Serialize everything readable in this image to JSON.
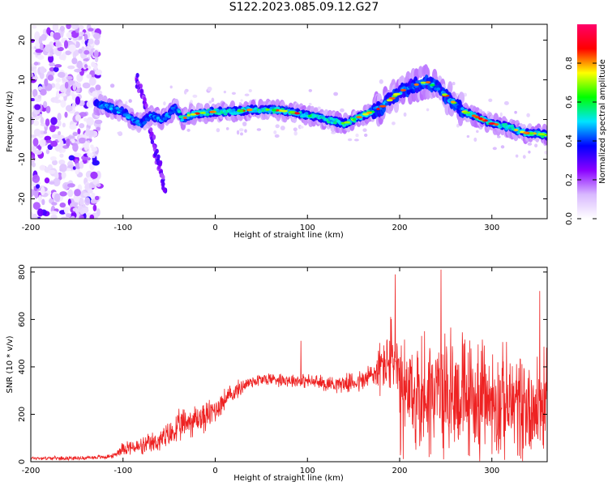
{
  "title": "S122.2023.085.09.12.G27",
  "chart_data": [
    {
      "type": "heatmap",
      "xlabel": "Height of straight line (km)",
      "ylabel": "Frequency (Hz)",
      "xlim": [
        -200,
        360
      ],
      "ylim": [
        -25,
        24
      ],
      "xticks": [
        "-200",
        "-100",
        "0",
        "100",
        "200",
        "300"
      ],
      "yticks": [
        "20",
        "10",
        "0",
        "-10",
        "-20"
      ],
      "colorbar": {
        "label": "Normalized spectral amplitude",
        "range": [
          0.0,
          1.0
        ],
        "ticks": [
          "0.0",
          "0.2",
          "0.4",
          "0.6",
          "0.8"
        ],
        "colors": [
          "#ffffff",
          "#d8b8ff",
          "#8a00ff",
          "#0000ff",
          "#00e5ff",
          "#00ff00",
          "#ffff00",
          "#ff0000",
          "#ff006a"
        ]
      },
      "ridge": {
        "x": [
          -130,
          -115,
          -100,
          -90,
          -80,
          -70,
          -60,
          -50,
          -45,
          -40,
          -35,
          -30,
          -20,
          0,
          20,
          40,
          60,
          80,
          100,
          120,
          140,
          150,
          160,
          170,
          180,
          190,
          200,
          210,
          220,
          230,
          240,
          250,
          260,
          270,
          280,
          290,
          300,
          310,
          320,
          330,
          340,
          350,
          360
        ],
        "y": [
          4,
          3,
          2,
          0,
          -1,
          1,
          0,
          1,
          3,
          2,
          0,
          1,
          1.5,
          2,
          2,
          2.5,
          2.5,
          2,
          1,
          0,
          -1,
          0,
          1,
          2,
          3,
          5,
          7,
          8,
          9,
          9.5,
          8,
          6,
          4,
          2,
          1,
          0,
          -1,
          -1.5,
          -2,
          -3,
          -3.5,
          -3.5,
          -4
        ]
      },
      "noise_region_x": [
        -200,
        -125
      ],
      "side_branches": [
        {
          "x": [
            -85,
            -80,
            -75,
            -70
          ],
          "y": [
            10,
            7,
            3,
            0
          ]
        },
        {
          "x": [
            -70,
            -65,
            -60,
            -55
          ],
          "y": [
            -2,
            -8,
            -12,
            -18
          ]
        }
      ]
    },
    {
      "type": "line",
      "xlabel": "Height of straight line (km)",
      "ylabel": "SNR (10 * v/v)",
      "xlim": [
        -200,
        360
      ],
      "ylim": [
        0,
        820
      ],
      "xticks": [
        "-200",
        "-100",
        "0",
        "100",
        "200",
        "300"
      ],
      "yticks": [
        "0",
        "200",
        "400",
        "600",
        "800"
      ],
      "series": [
        {
          "color": "#ee2222",
          "envelope": {
            "x": [
              -200,
              -150,
              -120,
              -110,
              -100,
              -80,
              -60,
              -50,
              -40,
              -30,
              -20,
              -10,
              0,
              10,
              20,
              30,
              40,
              60,
              80,
              100,
              120,
              140,
              160,
              175,
              185,
              195,
              200,
              220,
              240,
              260,
              280,
              300,
              320,
              340,
              360
            ],
            "y": [
              15,
              15,
              20,
              25,
              60,
              60,
              90,
              110,
              140,
              170,
              180,
              190,
              220,
              260,
              290,
              320,
              340,
              350,
              345,
              340,
              330,
              330,
              340,
              380,
              420,
              450,
              250,
              280,
              300,
              300,
              260,
              260,
              240,
              240,
              230
            ]
          },
          "amplitude": {
            "x": [
              -200,
              -150,
              -110,
              -100,
              -60,
              -40,
              -20,
              0,
              20,
              40,
              100,
              150,
              170,
              185,
              195,
              200,
              250,
              300,
              360
            ],
            "y": [
              8,
              8,
              10,
              30,
              50,
              70,
              70,
              60,
              40,
              30,
              30,
              40,
              70,
              140,
              200,
              260,
              280,
              240,
              230
            ]
          },
          "peaks": [
            {
              "x": 93,
              "y": 510
            },
            {
              "x": 195,
              "y": 790
            },
            {
              "x": 245,
              "y": 810
            },
            {
              "x": 352,
              "y": 720
            }
          ]
        }
      ]
    }
  ]
}
